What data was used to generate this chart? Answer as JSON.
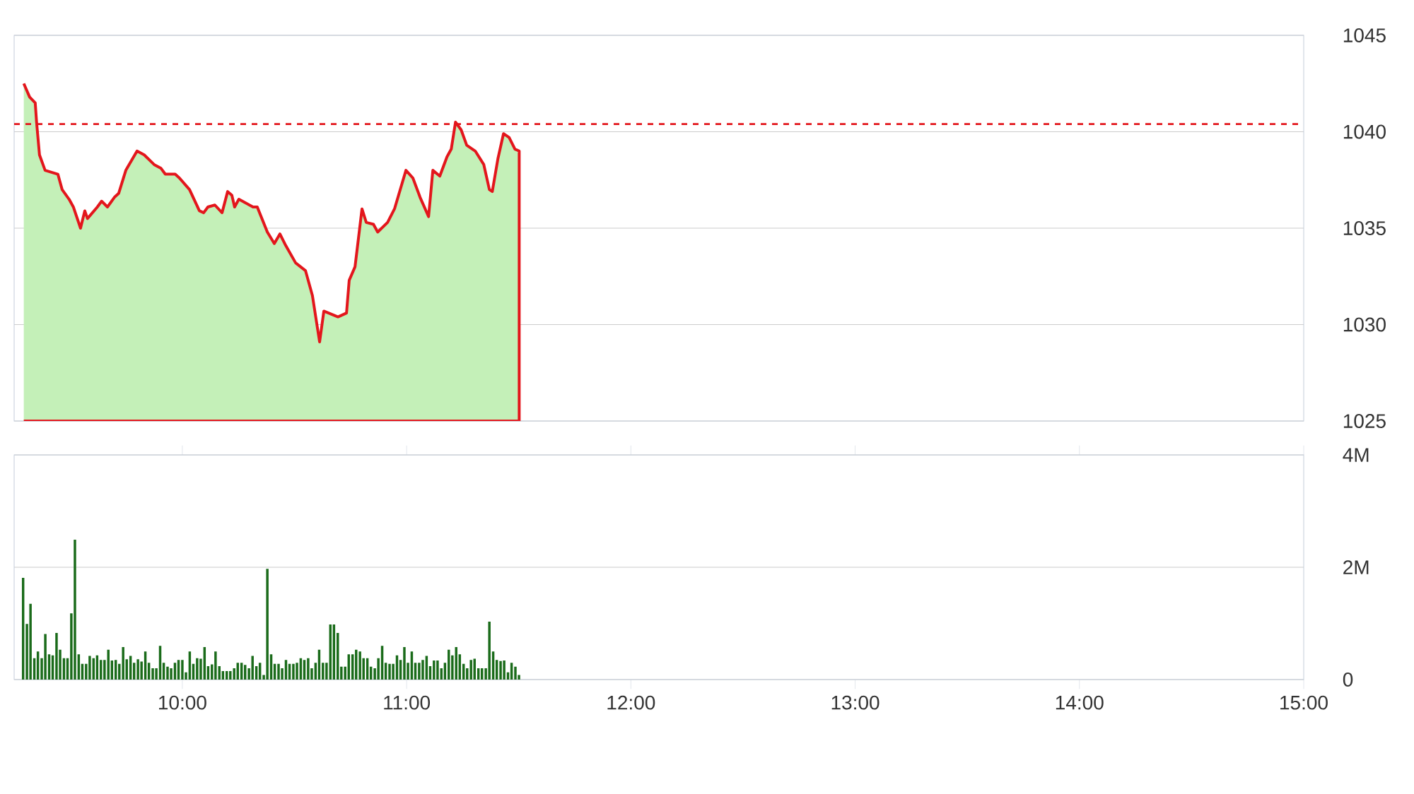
{
  "chart_data": [
    {
      "type": "area",
      "xlim": [
        9.25,
        15
      ],
      "ylim": [
        1025,
        1045
      ],
      "yticks": [
        1025,
        1030,
        1035,
        1040,
        1045
      ],
      "grid": "y",
      "tick_labels": "y",
      "ref_lines": [
        {
          "axis": "y",
          "value": 1040.4,
          "color": "#e3161c",
          "line_style": "dashed"
        }
      ],
      "x": [
        9.293,
        9.319,
        9.344,
        9.35,
        9.363,
        9.388,
        9.445,
        9.464,
        9.495,
        9.514,
        9.546,
        9.565,
        9.577,
        9.621,
        9.64,
        9.666,
        9.697,
        9.716,
        9.748,
        9.798,
        9.83,
        9.874,
        9.905,
        9.924,
        9.968,
        9.987,
        10.032,
        10.076,
        10.095,
        10.114,
        10.145,
        10.177,
        10.202,
        10.221,
        10.233,
        10.252,
        10.315,
        10.334,
        10.379,
        10.41,
        10.435,
        10.461,
        10.505,
        10.549,
        10.58,
        10.612,
        10.631,
        10.694,
        10.732,
        10.744,
        10.77,
        10.801,
        10.82,
        10.852,
        10.871,
        10.915,
        10.946,
        10.997,
        11.028,
        11.06,
        11.098,
        11.117,
        11.148,
        11.18,
        11.199,
        11.218,
        11.243,
        11.268,
        11.306,
        11.344,
        11.369,
        11.382,
        11.407,
        11.432,
        11.457,
        11.483,
        11.502
      ],
      "series": [
        {
          "color": "#c4f0b8",
          "values": [
            1042.5,
            1041.8,
            1041.5,
            1040.5,
            1038.8,
            1038.0,
            1037.8,
            1037.0,
            1036.5,
            1036.1,
            1035.0,
            1035.9,
            1035.5,
            1036.1,
            1036.4,
            1036.1,
            1036.6,
            1036.8,
            1038.0,
            1039.0,
            1038.8,
            1038.3,
            1038.1,
            1037.8,
            1037.8,
            1037.6,
            1037.0,
            1035.9,
            1035.8,
            1036.1,
            1036.2,
            1035.8,
            1036.9,
            1036.7,
            1036.1,
            1036.5,
            1036.1,
            1036.1,
            1034.8,
            1034.2,
            1034.7,
            1034.1,
            1033.2,
            1032.8,
            1031.5,
            1029.1,
            1030.7,
            1030.4,
            1030.6,
            1032.3,
            1033.0,
            1036.0,
            1035.3,
            1035.2,
            1034.8,
            1035.3,
            1036.0,
            1038.0,
            1037.6,
            1036.6,
            1035.6,
            1038.0,
            1037.7,
            1038.7,
            1039.1,
            1040.5,
            1040.1,
            1039.3,
            1039.0,
            1038.3,
            1037.0,
            1036.9,
            1038.6,
            1039.9,
            1039.7,
            1039.1,
            1039.0
          ]
        }
      ]
    },
    {
      "type": "bar",
      "xlim": [
        9.25,
        15
      ],
      "xticks": [
        {
          "value": 10,
          "label": "10:00"
        },
        {
          "value": 11,
          "label": "11:00"
        },
        {
          "value": 12,
          "label": "12:00"
        },
        {
          "value": 13,
          "label": "13:00"
        },
        {
          "value": 14,
          "label": "14:00"
        },
        {
          "value": 15,
          "label": "15:00"
        }
      ],
      "ylim": [
        0,
        4
      ],
      "yticks": [
        0,
        {
          "value": 2,
          "label": "2M"
        },
        {
          "value": 4,
          "label": "4M"
        }
      ],
      "grid": "y",
      "x": [
        9.29,
        9.307,
        9.323,
        9.34,
        9.356,
        9.373,
        9.389,
        9.406,
        9.422,
        9.439,
        9.455,
        9.472,
        9.488,
        9.505,
        9.521,
        9.538,
        9.554,
        9.571,
        9.587,
        9.604,
        9.62,
        9.637,
        9.653,
        9.67,
        9.686,
        9.703,
        9.719,
        9.736,
        9.752,
        9.769,
        9.785,
        9.802,
        9.818,
        9.835,
        9.851,
        9.868,
        9.884,
        9.901,
        9.917,
        9.934,
        9.95,
        9.967,
        9.983,
        10.0,
        10.016,
        10.033,
        10.049,
        10.066,
        10.082,
        10.099,
        10.115,
        10.132,
        10.148,
        10.165,
        10.181,
        10.198,
        10.214,
        10.231,
        10.247,
        10.264,
        10.28,
        10.297,
        10.313,
        10.33,
        10.346,
        10.363,
        10.379,
        10.396,
        10.412,
        10.429,
        10.445,
        10.462,
        10.478,
        10.495,
        10.511,
        10.528,
        10.544,
        10.561,
        10.577,
        10.594,
        10.61,
        10.627,
        10.643,
        10.66,
        10.676,
        10.693,
        10.709,
        10.726,
        10.742,
        10.759,
        10.775,
        10.792,
        10.808,
        10.825,
        10.841,
        10.858,
        10.874,
        10.891,
        10.907,
        10.924,
        10.94,
        10.957,
        10.973,
        10.99,
        11.006,
        11.023,
        11.039,
        11.056,
        11.072,
        11.089,
        11.105,
        11.122,
        11.138,
        11.155,
        11.171,
        11.188,
        11.204,
        11.221,
        11.237,
        11.254,
        11.27,
        11.287,
        11.303,
        11.32,
        11.336,
        11.353,
        11.369,
        11.386,
        11.402,
        11.419,
        11.435,
        11.452,
        11.468,
        11.485,
        11.501
      ],
      "series": [
        {
          "color": "#1a6b1a",
          "values": [
            1.81,
            0.99,
            1.35,
            0.38,
            0.5,
            0.38,
            0.81,
            0.45,
            0.43,
            0.83,
            0.53,
            0.38,
            0.38,
            1.18,
            2.49,
            0.45,
            0.28,
            0.28,
            0.42,
            0.38,
            0.43,
            0.35,
            0.35,
            0.53,
            0.34,
            0.35,
            0.28,
            0.58,
            0.36,
            0.42,
            0.3,
            0.36,
            0.32,
            0.5,
            0.3,
            0.2,
            0.2,
            0.6,
            0.3,
            0.23,
            0.2,
            0.3,
            0.35,
            0.35,
            0.13,
            0.5,
            0.28,
            0.38,
            0.37,
            0.58,
            0.24,
            0.27,
            0.5,
            0.24,
            0.15,
            0.15,
            0.15,
            0.2,
            0.3,
            0.3,
            0.26,
            0.2,
            0.42,
            0.24,
            0.3,
            0.08,
            1.97,
            0.45,
            0.28,
            0.28,
            0.2,
            0.35,
            0.28,
            0.28,
            0.3,
            0.38,
            0.35,
            0.38,
            0.2,
            0.3,
            0.53,
            0.3,
            0.3,
            0.98,
            0.98,
            0.83,
            0.23,
            0.23,
            0.45,
            0.45,
            0.53,
            0.5,
            0.38,
            0.38,
            0.23,
            0.2,
            0.38,
            0.6,
            0.3,
            0.28,
            0.28,
            0.43,
            0.35,
            0.58,
            0.3,
            0.5,
            0.3,
            0.3,
            0.35,
            0.42,
            0.24,
            0.34,
            0.34,
            0.2,
            0.3,
            0.53,
            0.43,
            0.58,
            0.45,
            0.28,
            0.2,
            0.35,
            0.37,
            0.2,
            0.2,
            0.2,
            1.03,
            0.5,
            0.35,
            0.33,
            0.34,
            0.13,
            0.3,
            0.23,
            0.08
          ]
        }
      ]
    }
  ]
}
